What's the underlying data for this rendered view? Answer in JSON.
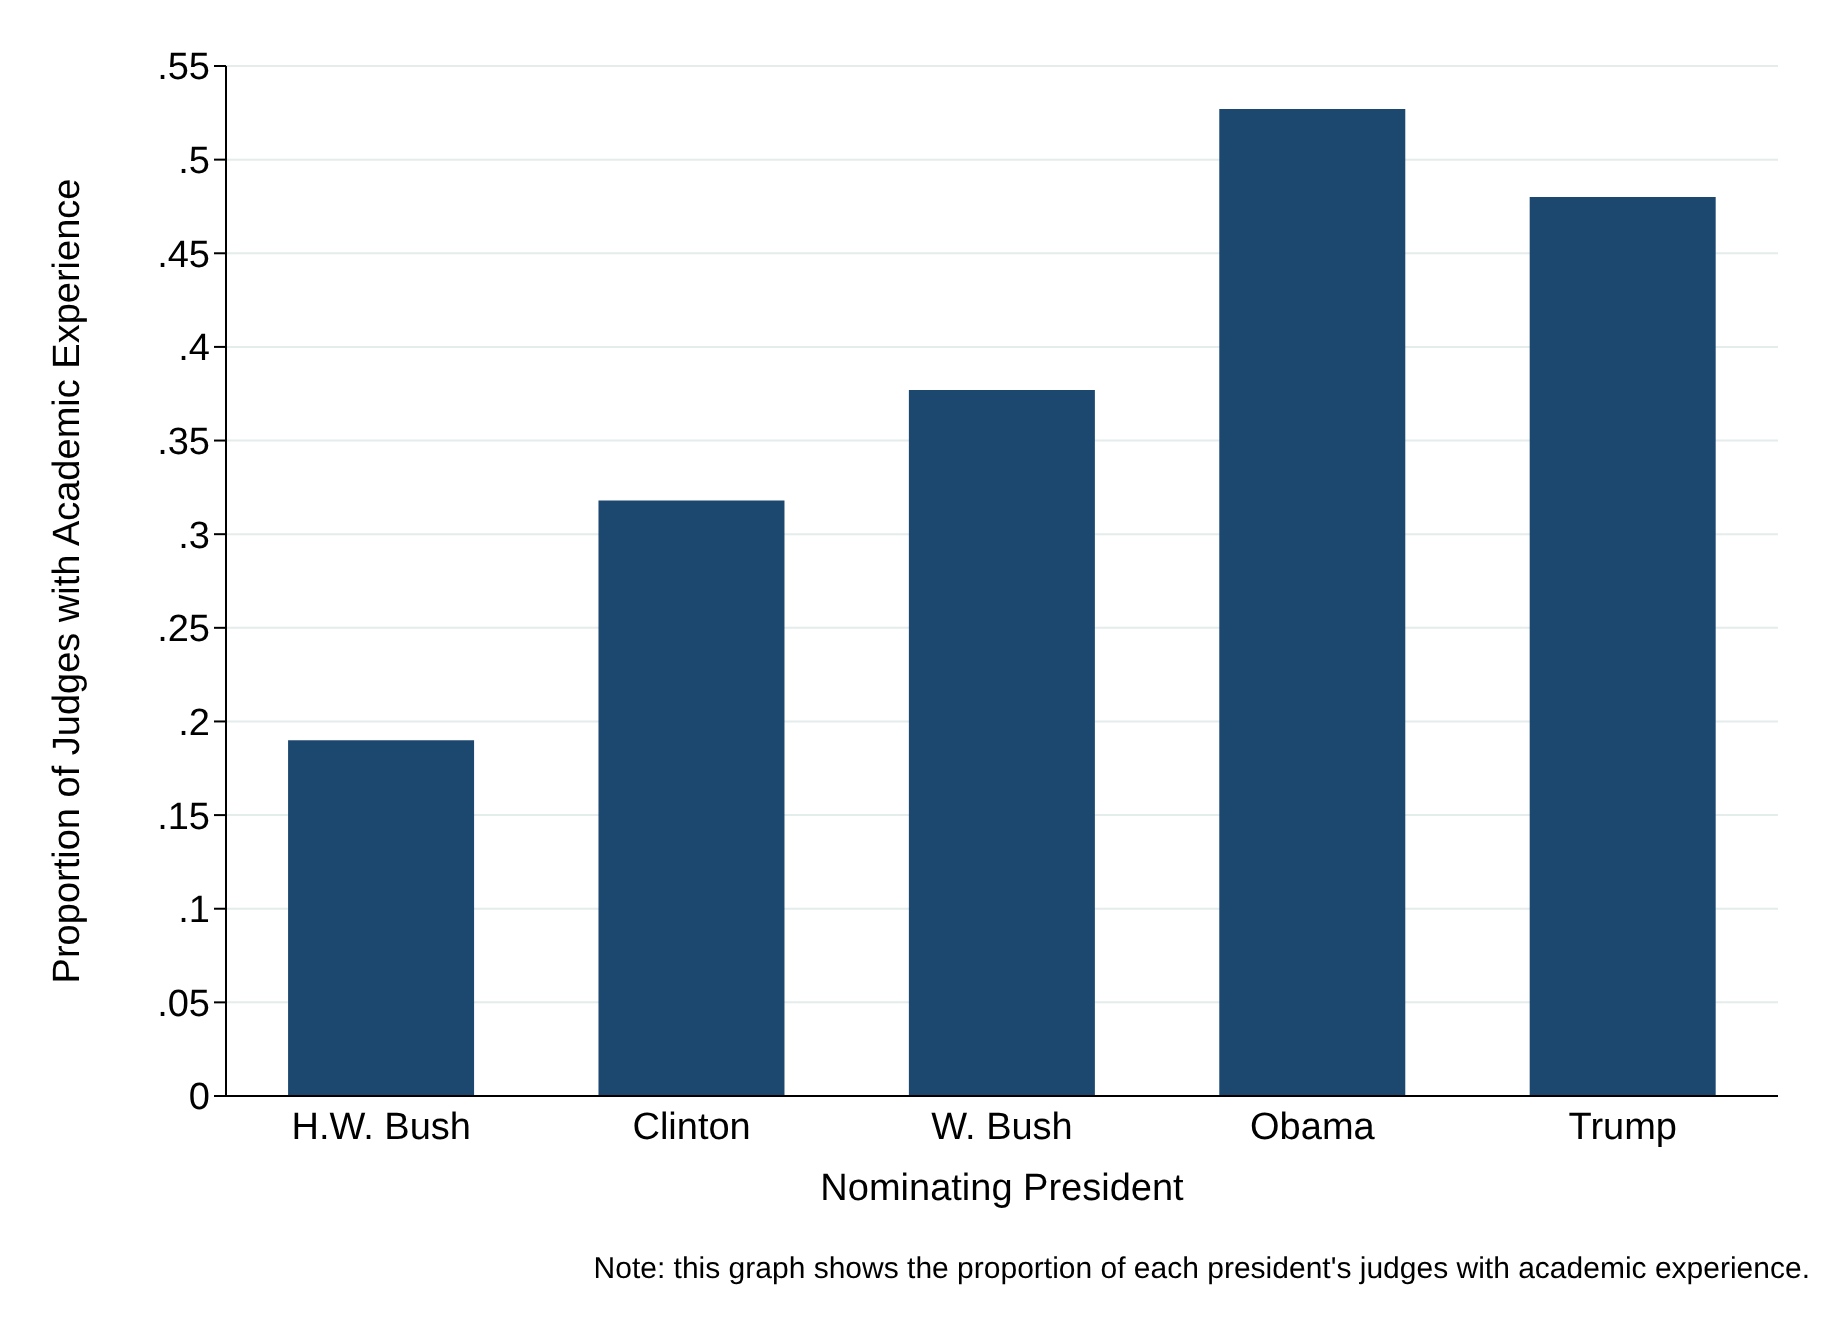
{
  "chart_data": {
    "type": "bar",
    "xlabel": "Nominating President",
    "ylabel": "Proportion of Judges with Academic Experience",
    "categories": [
      "H.W. Bush",
      "Clinton",
      "W. Bush",
      "Obama",
      "Trump"
    ],
    "values": [
      0.19,
      0.318,
      0.377,
      0.527,
      0.48
    ],
    "color": "#1c476f",
    "ylim": [
      0,
      0.55
    ],
    "yticks": [
      0,
      {
        "value": 0.05,
        "label": ".05"
      },
      {
        "value": 0.1,
        "label": ".1"
      },
      {
        "value": 0.15,
        "label": ".15"
      },
      {
        "value": 0.2,
        "label": ".2"
      },
      {
        "value": 0.25,
        "label": ".25"
      },
      {
        "value": 0.3,
        "label": ".3"
      },
      {
        "value": 0.35,
        "label": ".35"
      },
      {
        "value": 0.4,
        "label": ".4"
      },
      {
        "value": 0.45,
        "label": ".45"
      },
      {
        "value": 0.5,
        "label": ".5"
      },
      {
        "value": 0.55,
        "label": ".55"
      }
    ],
    "grid": "y",
    "annotations": [
      "Note: this graph shows the proportion of each president's judges with academic experience."
    ]
  }
}
